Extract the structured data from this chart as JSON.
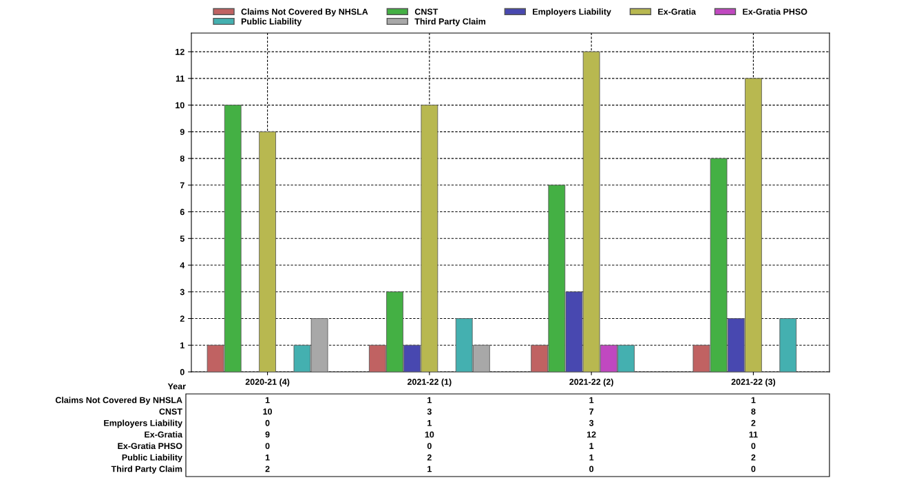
{
  "chart_data": {
    "type": "bar",
    "xlabel": "Year",
    "categories": [
      "2020-21 (4)",
      "2021-22 (1)",
      "2021-22 (2)",
      "2021-22 (3)"
    ],
    "series": [
      {
        "name": "Claims Not Covered By NHSLA",
        "color": "#c06262",
        "values": [
          1,
          1,
          1,
          1
        ]
      },
      {
        "name": "CNST",
        "color": "#44b044",
        "values": [
          10,
          3,
          7,
          8
        ]
      },
      {
        "name": "Employers Liability",
        "color": "#4848b0",
        "values": [
          0,
          1,
          3,
          2
        ]
      },
      {
        "name": "Ex-Gratia",
        "color": "#b8b850",
        "values": [
          9,
          10,
          12,
          11
        ]
      },
      {
        "name": "Ex-Gratia PHSO",
        "color": "#c048c0",
        "values": [
          0,
          0,
          1,
          0
        ]
      },
      {
        "name": "Public Liability",
        "color": "#44b0b0",
        "values": [
          1,
          2,
          1,
          2
        ]
      },
      {
        "name": "Third Party Claim",
        "color": "#a8a8a8",
        "values": [
          2,
          1,
          0,
          0
        ]
      }
    ],
    "ylim": [
      0,
      12.7
    ],
    "yticks": [
      0,
      1,
      2,
      3,
      4,
      5,
      6,
      7,
      8,
      9,
      10,
      11,
      12
    ],
    "grid": true,
    "legend": "top",
    "data_labels": true
  }
}
